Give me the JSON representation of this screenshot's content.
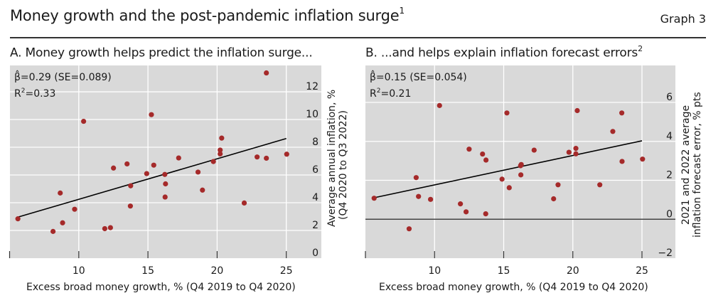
{
  "header": {
    "title": "Money growth and the post-pandemic inflation surge",
    "title_footnote": "1",
    "graph_label": "Graph 3"
  },
  "colors": {
    "plot_bg": "#d9d9d9",
    "grid": "#ffffff",
    "point": "#a52a2a",
    "fit_line": "#000000",
    "zero_line": "#444444"
  },
  "chart_data": [
    {
      "id": "panel-a",
      "type": "scatter",
      "title": "A. Money growth helps predict the inflation surge...",
      "title_footnote": "",
      "xlabel": "Excess broad money growth, % (Q4 2019 to Q4 2020)",
      "ylabel_line1": "Average annual inflation, %",
      "ylabel_line2": "(Q4 2020 to Q3 2022)",
      "xlim": [
        5,
        27.5
      ],
      "ylim": [
        0,
        13.9
      ],
      "xticks": [
        5,
        10,
        15,
        20,
        25
      ],
      "xtick_labels": [
        "",
        "10",
        "15",
        "20",
        "25"
      ],
      "yticks": [
        0,
        2,
        4,
        6,
        8,
        10,
        12
      ],
      "ytick_labels": [
        "0",
        "2",
        "4",
        "6",
        "8",
        "10",
        "12"
      ],
      "grid": true,
      "zero_line": false,
      "annotation": {
        "beta": "β̂=0.29 (SE=0.089)",
        "r2_prefix": "R",
        "r2_sup": "2",
        "r2_value": "=0.33"
      },
      "fit": {
        "x": [
          5.6,
          25.0
        ],
        "y": [
          2.96,
          8.63
        ],
        "slope": 0.29
      },
      "points": [
        {
          "x": 5.6,
          "y": 2.84
        },
        {
          "x": 8.14,
          "y": 1.93
        },
        {
          "x": 8.66,
          "y": 4.7
        },
        {
          "x": 8.83,
          "y": 2.55
        },
        {
          "x": 9.7,
          "y": 3.53
        },
        {
          "x": 10.35,
          "y": 9.87
        },
        {
          "x": 11.88,
          "y": 2.13
        },
        {
          "x": 12.29,
          "y": 2.2
        },
        {
          "x": 12.51,
          "y": 6.5
        },
        {
          "x": 13.49,
          "y": 6.8
        },
        {
          "x": 13.75,
          "y": 5.22
        },
        {
          "x": 13.73,
          "y": 3.76
        },
        {
          "x": 14.91,
          "y": 6.1
        },
        {
          "x": 15.25,
          "y": 10.35
        },
        {
          "x": 15.42,
          "y": 6.71
        },
        {
          "x": 16.22,
          "y": 6.04
        },
        {
          "x": 16.27,
          "y": 5.36
        },
        {
          "x": 16.24,
          "y": 4.41
        },
        {
          "x": 17.22,
          "y": 7.23
        },
        {
          "x": 18.62,
          "y": 6.21
        },
        {
          "x": 18.94,
          "y": 4.91
        },
        {
          "x": 19.73,
          "y": 6.97
        },
        {
          "x": 20.22,
          "y": 7.8
        },
        {
          "x": 20.22,
          "y": 7.52
        },
        {
          "x": 20.33,
          "y": 8.66
        },
        {
          "x": 21.96,
          "y": 3.98
        },
        {
          "x": 22.89,
          "y": 7.3
        },
        {
          "x": 23.56,
          "y": 7.21
        },
        {
          "x": 23.56,
          "y": 13.36
        },
        {
          "x": 25.03,
          "y": 7.5
        }
      ]
    },
    {
      "id": "panel-b",
      "type": "scatter",
      "title": "B. ...and helps explain inflation forecast errors",
      "title_footnote": "2",
      "xlabel": "Excess broad money growth, % (Q4 2019 to Q4 2020)",
      "ylabel_line1": "2021 and 2022 average",
      "ylabel_line2": "inflation forecast error, % pts",
      "xlim": [
        5,
        27.5
      ],
      "ylim": [
        -2,
        7.9
      ],
      "xticks": [
        5,
        10,
        15,
        20,
        25
      ],
      "xtick_labels": [
        "",
        "10",
        "15",
        "20",
        "25"
      ],
      "yticks": [
        -2,
        0,
        2,
        4,
        6
      ],
      "ytick_labels": [
        "−2",
        "0",
        "2",
        "4",
        "6"
      ],
      "grid": true,
      "zero_line": true,
      "annotation": {
        "beta": "β̂=0.15 (SE=0.054)",
        "r2_prefix": "R",
        "r2_sup": "2",
        "r2_value": "=0.21"
      },
      "fit": {
        "x": [
          5.6,
          25.0
        ],
        "y": [
          1.1,
          4.03
        ],
        "slope": 0.15
      },
      "points": [
        {
          "x": 5.63,
          "y": 1.08
        },
        {
          "x": 8.16,
          "y": -0.49
        },
        {
          "x": 8.67,
          "y": 2.14
        },
        {
          "x": 8.84,
          "y": 1.17
        },
        {
          "x": 9.71,
          "y": 1.02
        },
        {
          "x": 10.36,
          "y": 5.84
        },
        {
          "x": 11.87,
          "y": 0.79
        },
        {
          "x": 12.28,
          "y": 0.38
        },
        {
          "x": 12.5,
          "y": 3.6
        },
        {
          "x": 13.47,
          "y": 3.35
        },
        {
          "x": 13.72,
          "y": 3.04
        },
        {
          "x": 13.7,
          "y": 0.28
        },
        {
          "x": 14.88,
          "y": 2.06
        },
        {
          "x": 15.23,
          "y": 5.46
        },
        {
          "x": 15.4,
          "y": 1.62
        },
        {
          "x": 16.22,
          "y": 2.75
        },
        {
          "x": 16.27,
          "y": 2.81
        },
        {
          "x": 16.24,
          "y": 2.28
        },
        {
          "x": 17.2,
          "y": 3.55
        },
        {
          "x": 18.61,
          "y": 1.05
        },
        {
          "x": 18.93,
          "y": 1.77
        },
        {
          "x": 19.72,
          "y": 3.44
        },
        {
          "x": 20.22,
          "y": 3.64
        },
        {
          "x": 20.22,
          "y": 3.36
        },
        {
          "x": 20.32,
          "y": 5.58
        },
        {
          "x": 21.95,
          "y": 1.77
        },
        {
          "x": 22.89,
          "y": 4.51
        },
        {
          "x": 23.54,
          "y": 5.46
        },
        {
          "x": 23.56,
          "y": 2.97
        },
        {
          "x": 25.04,
          "y": 3.09
        }
      ]
    }
  ]
}
